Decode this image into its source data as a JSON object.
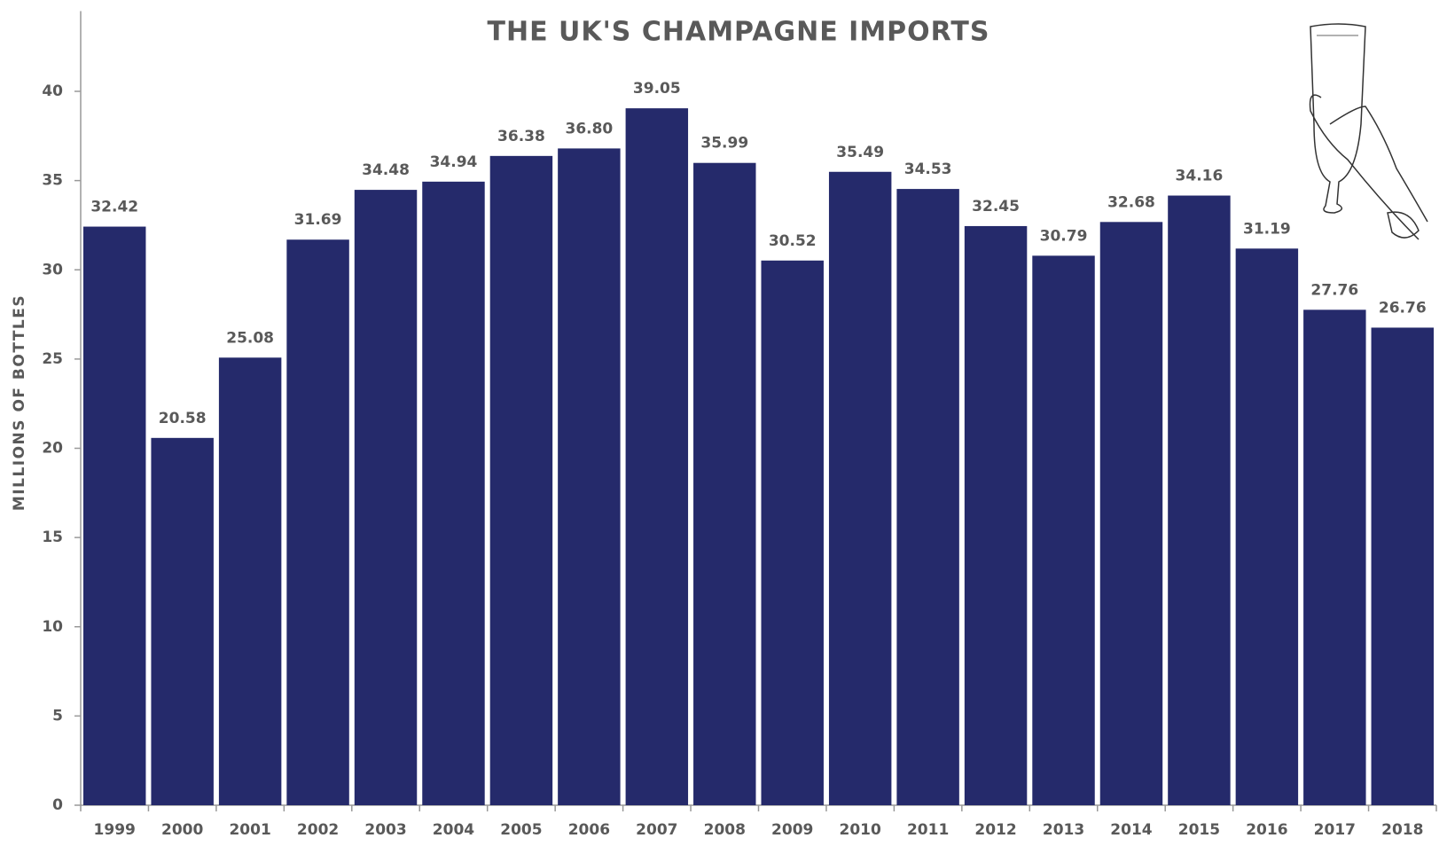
{
  "chart_data": {
    "type": "bar",
    "title": "THE UK'S CHAMPAGNE IMPORTS",
    "y_label": "MILLIONS OF BOTTLES",
    "categories": [
      "1999",
      "2000",
      "2001",
      "2002",
      "2003",
      "2004",
      "2005",
      "2006",
      "2007",
      "2008",
      "2009",
      "2010",
      "2011",
      "2012",
      "2013",
      "2014",
      "2015",
      "2016",
      "2017",
      "2018"
    ],
    "values": [
      32.42,
      20.58,
      25.08,
      31.69,
      34.48,
      34.94,
      36.38,
      36.8,
      39.05,
      35.99,
      30.52,
      35.49,
      34.53,
      32.45,
      30.79,
      32.68,
      34.16,
      31.19,
      27.76,
      26.76
    ],
    "value_labels": [
      "32.42",
      "20.58",
      "25.08",
      "31.69",
      "34.48",
      "34.94",
      "36.38",
      "36.80",
      "39.05",
      "35.99",
      "30.52",
      "35.49",
      "34.53",
      "32.45",
      "30.79",
      "32.68",
      "34.16",
      "31.19",
      "27.76",
      "26.76"
    ],
    "color": "#252a6b",
    "ylim": [
      0,
      44.5
    ],
    "yticks": [
      0,
      5,
      10,
      15,
      20,
      25,
      30,
      35,
      40
    ],
    "grid": false
  }
}
